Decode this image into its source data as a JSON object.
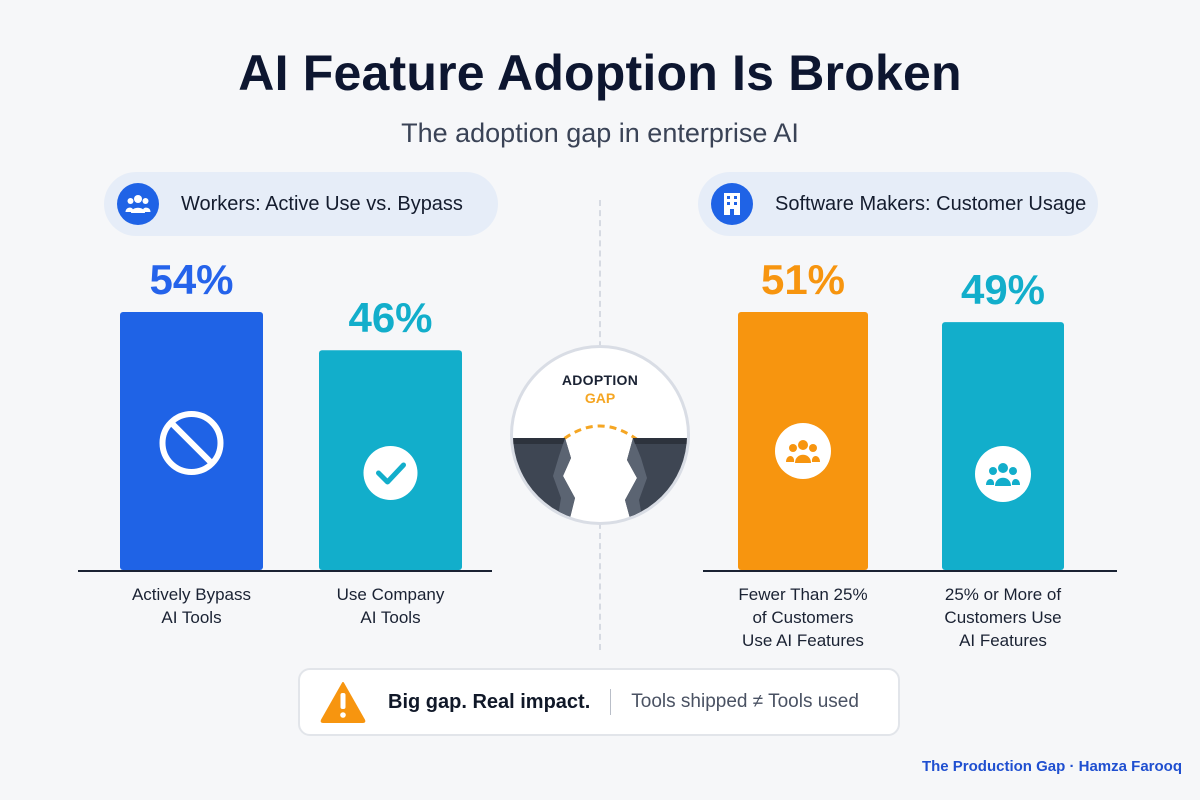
{
  "header": {
    "title": "AI Feature Adoption Is Broken",
    "subtitle": "The adoption gap in enterprise AI"
  },
  "panels": {
    "left": {
      "label": "Workers: Active Use vs. Bypass",
      "icon": "people-icon"
    },
    "right": {
      "label": "Software Makers: Customer Usage",
      "icon": "building-icon"
    }
  },
  "center": {
    "line1": "ADOPTION",
    "line2": "GAP",
    "icon": "cliff-gap-icon"
  },
  "callout": {
    "icon": "warning-icon",
    "bold": "Big gap. Real impact.",
    "light": "Tools shipped ≠ Tools used"
  },
  "credit": "The Production Gap · Hamza Farooq",
  "colors": {
    "blue": "#1f63e6",
    "teal": "#12aecb",
    "orange": "#f7950f",
    "teal2": "#12aecb"
  },
  "chart_data": [
    {
      "type": "bar",
      "categories": [
        "Actively Bypass\nAI Tools",
        "Use Company\nAI Tools"
      ],
      "values": [
        54,
        46
      ],
      "value_labels": [
        "54%",
        "46%"
      ],
      "icons": [
        "ban-icon",
        "check-icon"
      ],
      "colors": [
        "#1f63e6",
        "#12aecb"
      ],
      "label_colors": [
        "#2563eb",
        "#12aecb"
      ],
      "ylim": [
        0,
        54
      ],
      "grid": false
    },
    {
      "type": "bar",
      "categories": [
        "Fewer Than 25%\nof Customers\nUse AI Features",
        "25% or More of\nCustomers Use\nAI Features"
      ],
      "values": [
        51,
        49
      ],
      "value_labels": [
        "51%",
        "49%"
      ],
      "icons": [
        "people-icon",
        "people-icon"
      ],
      "colors": [
        "#f7950f",
        "#12aecb"
      ],
      "label_colors": [
        "#f7950f",
        "#12aecb"
      ],
      "ylim": [
        0,
        51
      ],
      "grid": false
    }
  ]
}
